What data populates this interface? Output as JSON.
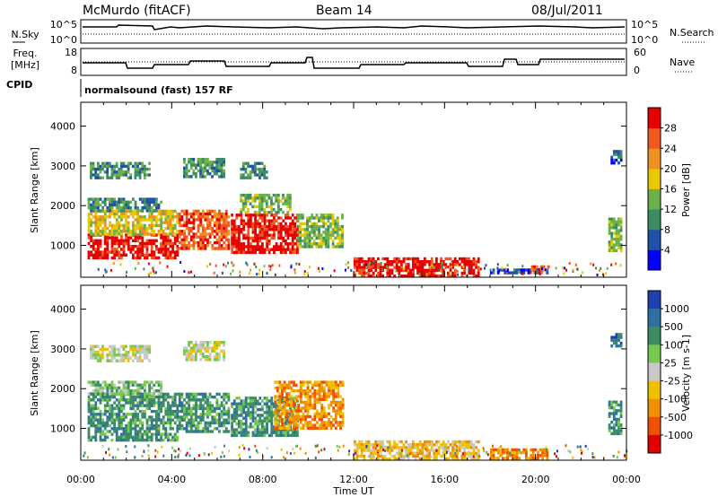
{
  "header": {
    "station": "McMurdo (fitACF)",
    "beam": "Beam 14",
    "date": "08/Jul/2011"
  },
  "summary": {
    "nsky_label": "N.Sky",
    "nsearch_label": "N.Search",
    "freq_label_1": "Freq.",
    "freq_label_2": "[MHz]",
    "nave_label": "Nave",
    "cpid_label": "CPID",
    "cpid_text": "normalsound (fast) 157 RF",
    "noise_ticks_left": [
      "10^5",
      "10^0"
    ],
    "noise_ticks_right": [
      "10^5",
      "10^0"
    ],
    "freq_ticks": [
      "18",
      "8"
    ],
    "nave_ticks": [
      "60",
      "0"
    ]
  },
  "chart_data": [
    {
      "type": "heatmap",
      "panel": "power",
      "ylabel": "Slant Range [km]",
      "ylim": [
        200,
        4600
      ],
      "yticks": [
        1000,
        2000,
        3000,
        4000
      ],
      "xlabel": "Time UT",
      "xlim": [
        0,
        24
      ],
      "xtick_labels": [
        "00:00",
        "04:00",
        "08:00",
        "12:00",
        "16:00",
        "20:00",
        "00:00"
      ],
      "colorbar": {
        "label": "Power [dB]",
        "ticks": [
          "4",
          "8",
          "12",
          "16",
          "20",
          "24",
          "28"
        ],
        "colors": [
          "#0000ff",
          "#2050a8",
          "#3c8c64",
          "#6cb04c",
          "#e8c800",
          "#f09020",
          "#f05820",
          "#e80000"
        ]
      },
      "regions": [
        {
          "t0": 0.3,
          "t1": 4.2,
          "r0": 700,
          "r1": 1300,
          "level": 7
        },
        {
          "t0": 0.3,
          "t1": 4.2,
          "r0": 1300,
          "r1": 1900,
          "level": 4
        },
        {
          "t0": 0.3,
          "t1": 3.5,
          "r0": 1900,
          "r1": 2200,
          "level": 2
        },
        {
          "t0": 0.4,
          "t1": 3.0,
          "r0": 2700,
          "r1": 3100,
          "level": 2
        },
        {
          "t0": 4.3,
          "t1": 6.5,
          "r0": 900,
          "r1": 1900,
          "level": 6
        },
        {
          "t0": 4.5,
          "t1": 6.3,
          "r0": 2700,
          "r1": 3200,
          "level": 2
        },
        {
          "t0": 6.6,
          "t1": 9.5,
          "r0": 800,
          "r1": 1800,
          "level": 7
        },
        {
          "t0": 7.0,
          "t1": 9.2,
          "r0": 1800,
          "r1": 2300,
          "level": 3
        },
        {
          "t0": 7.0,
          "t1": 8.2,
          "r0": 2700,
          "r1": 3100,
          "level": 2
        },
        {
          "t0": 9.5,
          "t1": 11.5,
          "r0": 1000,
          "r1": 1800,
          "level": 3
        },
        {
          "t0": 12.0,
          "t1": 17.5,
          "r0": 250,
          "r1": 700,
          "level": 7
        },
        {
          "t0": 18.0,
          "t1": 20.5,
          "r0": 280,
          "r1": 420,
          "level": 1
        },
        {
          "t0": 19.8,
          "t1": 20.6,
          "r0": 300,
          "r1": 500,
          "level": 6
        },
        {
          "t0": 23.2,
          "t1": 23.8,
          "r0": 900,
          "r1": 1700,
          "level": 3
        },
        {
          "t0": 23.3,
          "t1": 23.8,
          "r0": 3100,
          "r1": 3400,
          "level": 1
        }
      ]
    },
    {
      "type": "heatmap",
      "panel": "velocity",
      "ylabel": "Slant Range [km]",
      "ylim": [
        200,
        4600
      ],
      "yticks": [
        1000,
        2000,
        3000,
        4000
      ],
      "xlabel": "Time UT",
      "xlim": [
        0,
        24
      ],
      "xtick_labels": [
        "00:00",
        "04:00",
        "08:00",
        "12:00",
        "16:00",
        "20:00",
        "00:00"
      ],
      "colorbar": {
        "label": "Velocity [m s-1]",
        "ticks": [
          "1000",
          "500",
          "100",
          "25",
          "-25",
          "-100",
          "-500",
          "-1000"
        ],
        "colors": [
          "#2040b0",
          "#3070a0",
          "#3c8c64",
          "#78c850",
          "#c8c8c8",
          "#f0c000",
          "#f09000",
          "#f05000",
          "#e00000"
        ]
      },
      "regions": [
        {
          "t0": 0.3,
          "t1": 4.2,
          "r0": 700,
          "r1": 1900,
          "level": 2
        },
        {
          "t0": 0.3,
          "t1": 3.5,
          "r0": 1900,
          "r1": 2200,
          "level": 3
        },
        {
          "t0": 0.4,
          "t1": 3.0,
          "r0": 2700,
          "r1": 3100,
          "level": 4
        },
        {
          "t0": 4.3,
          "t1": 6.5,
          "r0": 900,
          "r1": 1900,
          "level": 2
        },
        {
          "t0": 4.5,
          "t1": 6.3,
          "r0": 2700,
          "r1": 3200,
          "level": 4
        },
        {
          "t0": 6.6,
          "t1": 9.5,
          "r0": 800,
          "r1": 1800,
          "level": 2
        },
        {
          "t0": 8.5,
          "t1": 11.5,
          "r0": 1000,
          "r1": 2200,
          "level": 6
        },
        {
          "t0": 12.0,
          "t1": 17.5,
          "r0": 250,
          "r1": 700,
          "level": 5
        },
        {
          "t0": 18.0,
          "t1": 20.5,
          "r0": 280,
          "r1": 500,
          "level": 6
        },
        {
          "t0": 23.2,
          "t1": 23.8,
          "r0": 900,
          "r1": 1700,
          "level": 2
        },
        {
          "t0": 23.3,
          "t1": 23.8,
          "r0": 3100,
          "r1": 3400,
          "level": 1
        }
      ]
    }
  ]
}
